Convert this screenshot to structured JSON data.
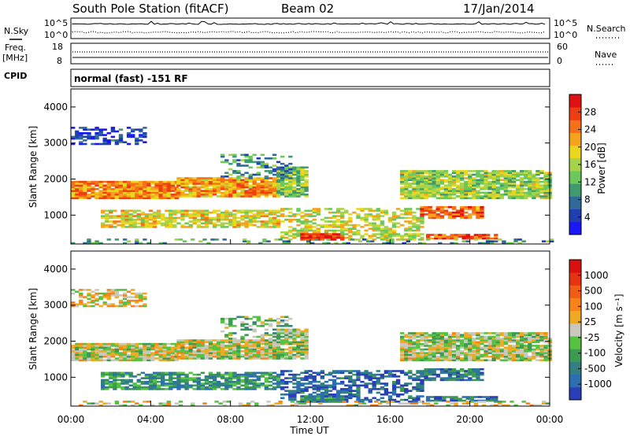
{
  "header": {
    "station": "South Pole Station (fitACF)",
    "beam": "Beam 02",
    "date": "17/Jan/2014"
  },
  "side_labels": {
    "nsky": "N.Sky",
    "nsearch": "N.Search",
    "freq_line1": "Freq.",
    "freq_line2": "[MHz]",
    "nave": "Nave",
    "cpid": "CPID"
  },
  "cpid_text": "normal (fast) -151 RF",
  "panel1": {
    "left_ticks": [
      "10^5",
      "10^0"
    ],
    "right_ticks": [
      "10^5",
      "10^0"
    ]
  },
  "panel2": {
    "left_ticks": [
      "18",
      "8"
    ],
    "right_ticks": [
      "60",
      "0"
    ]
  },
  "chart_data": [
    {
      "type": "heatmap",
      "parameter": "power",
      "ylabel": "Slant Range [km]",
      "yticks": [
        "1000",
        "2000",
        "3000",
        "4000"
      ],
      "ylim": [
        200,
        4500
      ],
      "colorbar": {
        "label": "Power [dB]",
        "ticks": [
          "28",
          "24",
          "20",
          "16",
          "12",
          "8",
          "4"
        ],
        "colors": [
          "#1a17f5",
          "#1f3fb0",
          "#2f6a98",
          "#3f9a70",
          "#6bc85a",
          "#a7d34a",
          "#e8d71c",
          "#f5a21c",
          "#f57016",
          "#ef3d12",
          "#e01111"
        ]
      }
    },
    {
      "type": "heatmap",
      "parameter": "velocity",
      "ylabel": "Slant Range [km]",
      "yticks": [
        "1000",
        "2000",
        "3000",
        "4000"
      ],
      "ylim": [
        200,
        4500
      ],
      "xticks": [
        "00:00",
        "04:00",
        "08:00",
        "12:00",
        "16:00",
        "20:00",
        "00:00"
      ],
      "xlabel": "Time UT",
      "colorbar": {
        "label": "Velocity [m s⁻¹]",
        "ticks": [
          "1000",
          "500",
          "100",
          "25",
          "-25",
          "-100",
          "-500",
          "-1000"
        ],
        "colors": [
          "#2a3fb4",
          "#2b6fb2",
          "#317f7f",
          "#3d9a52",
          "#55c341",
          "#c9c7be",
          "#eeaa22",
          "#f5831a",
          "#f05d14",
          "#e63412",
          "#d81010"
        ]
      }
    }
  ],
  "echo_bands": [
    {
      "panel": "both",
      "t0": 0.0,
      "t1": 5.3,
      "r0": 1450,
      "r1": 1950,
      "pw": 0.72,
      "vel": 0.5,
      "dens": 0.95
    },
    {
      "panel": "both",
      "t0": 5.3,
      "t1": 10.3,
      "r0": 1500,
      "r1": 2050,
      "pw": 0.7,
      "vel": 0.5,
      "dens": 0.95
    },
    {
      "panel": "both",
      "t0": 10.3,
      "t1": 11.7,
      "r0": 1500,
      "r1": 2350,
      "pw": 0.45,
      "vel": 0.45,
      "dens": 0.85
    },
    {
      "panel": "both",
      "t0": 16.5,
      "t1": 24.0,
      "r0": 1450,
      "r1": 2250,
      "pw": 0.48,
      "vel": 0.48,
      "dens": 0.9
    },
    {
      "panel": "both",
      "t0": 1.5,
      "t1": 10.3,
      "r0": 650,
      "r1": 1150,
      "pw": 0.58,
      "vel": 0.28,
      "dens": 0.75
    },
    {
      "panel": "both",
      "t0": 10.5,
      "t1": 17.5,
      "r0": 300,
      "r1": 1200,
      "pw": 0.55,
      "vel": 0.12,
      "dens": 0.55
    },
    {
      "panel": "both",
      "t0": 11.5,
      "t1": 13.5,
      "r0": 300,
      "r1": 500,
      "pw": 0.9,
      "vel": 0.22,
      "dens": 0.9
    },
    {
      "panel": "both",
      "t0": 17.5,
      "t1": 20.5,
      "r0": 900,
      "r1": 1250,
      "pw": 0.8,
      "vel": 0.2,
      "dens": 0.8
    },
    {
      "panel": "both",
      "t0": 17.8,
      "t1": 21.2,
      "r0": 330,
      "r1": 480,
      "pw": 0.82,
      "vel": 0.18,
      "dens": 0.85
    },
    {
      "panel": "both",
      "t0": 0.0,
      "t1": 3.8,
      "r0": 2950,
      "r1": 3450,
      "pw": 0.12,
      "vel": 0.55,
      "dens": 0.55
    },
    {
      "panel": "both",
      "t0": 7.5,
      "t1": 11.0,
      "r0": 2000,
      "r1": 2700,
      "pw": 0.3,
      "vel": 0.4,
      "dens": 0.4
    },
    {
      "panel": "both",
      "t0": 0.0,
      "t1": 24.0,
      "r0": 200,
      "r1": 350,
      "pw": 0.32,
      "vel": 0.52,
      "dens": 0.3
    }
  ]
}
